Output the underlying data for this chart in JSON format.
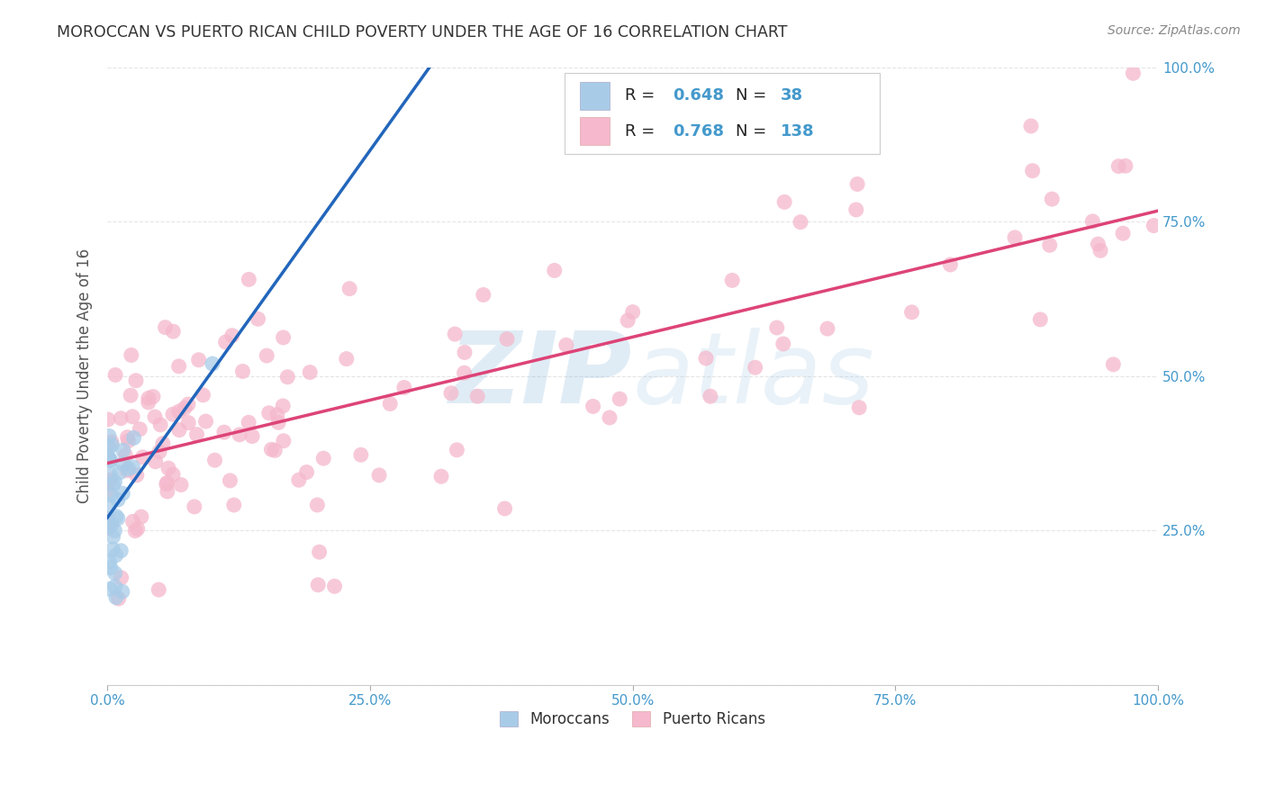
{
  "title": "MOROCCAN VS PUERTO RICAN CHILD POVERTY UNDER THE AGE OF 16 CORRELATION CHART",
  "source": "Source: ZipAtlas.com",
  "ylabel": "Child Poverty Under the Age of 16",
  "moroccan_R": 0.648,
  "moroccan_N": 38,
  "puerto_rican_R": 0.768,
  "puerto_rican_N": 138,
  "moroccan_color": "#a8cce8",
  "moroccan_edge_color": "#7ab0d8",
  "puerto_rican_color": "#f5b8cc",
  "puerto_rican_edge_color": "#e890a8",
  "moroccan_line_color": "#2266bb",
  "puerto_rican_line_color": "#dd4477",
  "background_color": "#ffffff",
  "grid_color": "#cccccc",
  "tick_label_color": "#4499cc",
  "title_color": "#333333",
  "source_color": "#888888",
  "watermark_color": "#b8d8f0",
  "ylabel_color": "#555555"
}
